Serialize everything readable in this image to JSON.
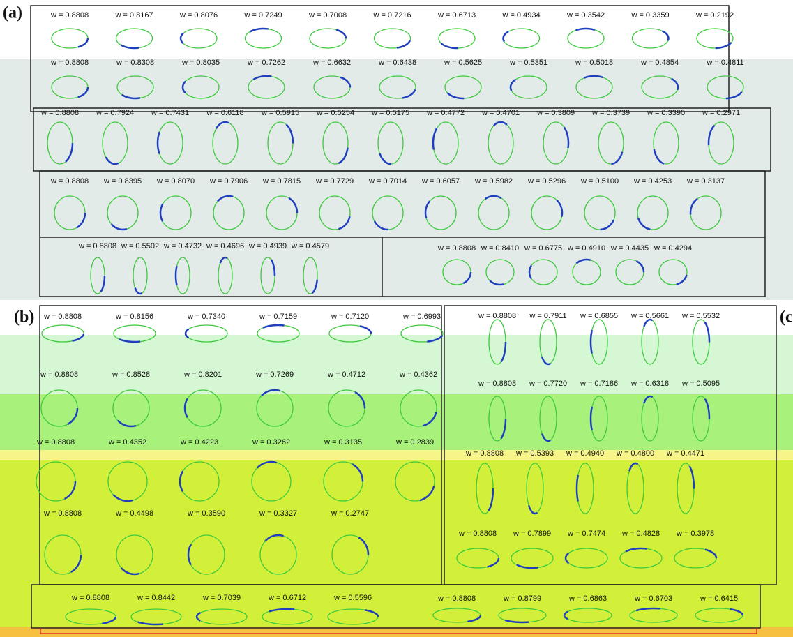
{
  "panels": [
    {
      "label": "(a)",
      "rows": [
        {
          "weights": [
            "w = 0.8808",
            "w = 0.8167",
            "w = 0.8076",
            "w = 0.7249",
            "w = 0.7008",
            "w = 0.7216",
            "w = 0.6713",
            "w = 0.4934",
            "w = 0.3542",
            "w = 0.3359",
            "w = 0.2192"
          ]
        },
        {
          "weights": [
            "w = 0.8808",
            "w = 0.8308",
            "w = 0.8035",
            "w = 0.7262",
            "w = 0.6632",
            "w = 0.6438",
            "w = 0.5625",
            "w = 0.5351",
            "w = 0.5018",
            "w = 0.4854",
            "w = 0.4811"
          ]
        },
        {
          "weights": [
            "w = 0.8808",
            "w = 0.7924",
            "w = 0.7431",
            "w = 0.6118",
            "w = 0.5915",
            "w = 0.5254",
            "w = 0.5175",
            "w = 0.4772",
            "w = 0.4701",
            "w = 0.3809",
            "w = 0.3739",
            "w = 0.3390",
            "w = 0.2971"
          ]
        },
        {
          "weights": [
            "w = 0.8808",
            "w = 0.8395",
            "w = 0.8070",
            "w = 0.7906",
            "w = 0.7815",
            "w = 0.7729",
            "w = 0.7014",
            "w = 0.6057",
            "w = 0.5982",
            "w = 0.5296",
            "w = 0.5100",
            "w = 0.4253",
            "w = 0.3137"
          ]
        },
        {
          "weights": [
            "w = 0.8808",
            "w = 0.5502",
            "w = 0.4732",
            "w = 0.4696",
            "w = 0.4939",
            "w = 0.4579"
          ]
        },
        {
          "weights": [
            "w = 0.8808",
            "w = 0.8410",
            "w = 0.6775",
            "w = 0.4910",
            "w = 0.4435",
            "w = 0.4294"
          ]
        }
      ]
    },
    {
      "label": "(b)",
      "rows": [
        {
          "weights": [
            "w = 0.8808",
            "w = 0.8156",
            "w = 0.7340",
            "w = 0.7159",
            "w = 0.7120",
            "w = 0.6993"
          ]
        },
        {
          "weights": [
            "w = 0.8808",
            "w = 0.8528",
            "w = 0.8201",
            "w = 0.7269",
            "w = 0.4712",
            "w = 0.4362"
          ]
        },
        {
          "weights": [
            "w = 0.8808",
            "w = 0.4352",
            "w = 0.4223",
            "w = 0.3262",
            "w = 0.3135",
            "w = 0.2839"
          ]
        },
        {
          "weights": [
            "w = 0.8808",
            "w = 0.4498",
            "w = 0.3590",
            "w = 0.3327",
            "w = 0.2747"
          ]
        },
        {
          "weights": [
            "w = 0.8808",
            "w = 0.8442",
            "w = 0.7039",
            "w = 0.6712",
            "w = 0.5596"
          ]
        }
      ]
    },
    {
      "label": "(c",
      "rows": [
        {
          "weights": [
            "w = 0.8808",
            "w = 0.7911",
            "w = 0.6855",
            "w = 0.5661",
            "w = 0.5532"
          ]
        },
        {
          "weights": [
            "w = 0.8808",
            "w = 0.7720",
            "w = 0.7186",
            "w = 0.6318",
            "w = 0.5095"
          ]
        },
        {
          "weights": [
            "w = 0.8808",
            "w = 0.5393",
            "w = 0.4940",
            "w = 0.4800",
            "w = 0.4471"
          ]
        },
        {
          "weights": [
            "w = 0.8808",
            "w = 0.7899",
            "w = 0.7474",
            "w = 0.4828",
            "w = 0.3978"
          ]
        },
        {
          "weights": [
            "w = 0.8808",
            "w = 0.8799",
            "w = 0.6863",
            "w = 0.6703",
            "w = 0.6415"
          ]
        }
      ]
    }
  ]
}
